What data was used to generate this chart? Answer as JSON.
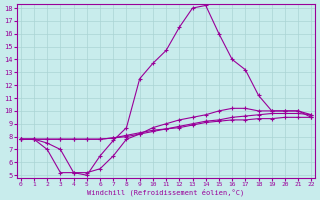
{
  "xlabel": "Windchill (Refroidissement éolien,°C)",
  "xlim": [
    -0.3,
    22.3
  ],
  "ylim": [
    4.8,
    18.3
  ],
  "yticks": [
    5,
    6,
    7,
    8,
    9,
    10,
    11,
    12,
    13,
    14,
    15,
    16,
    17,
    18
  ],
  "xticks": [
    0,
    1,
    2,
    3,
    4,
    5,
    6,
    7,
    8,
    9,
    10,
    11,
    12,
    13,
    14,
    15,
    16,
    17,
    18,
    19,
    20,
    21,
    22
  ],
  "background_color": "#c8ecec",
  "grid_color": "#aad4d4",
  "line_color": "#990099",
  "line1_x": [
    0,
    1,
    2,
    3,
    4,
    5,
    6,
    7,
    8,
    9,
    10,
    11,
    12,
    13,
    14,
    15,
    16,
    17,
    18,
    19,
    20,
    21,
    22
  ],
  "line1_y": [
    7.8,
    7.8,
    7.0,
    5.2,
    5.2,
    5.0,
    6.5,
    7.7,
    8.7,
    12.5,
    13.7,
    14.7,
    16.5,
    18.0,
    18.2,
    16.0,
    14.0,
    13.2,
    11.2,
    10.0,
    10.0,
    10.0,
    9.7
  ],
  "line2_x": [
    0,
    1,
    2,
    3,
    4,
    5,
    6,
    7,
    8,
    9,
    10,
    11,
    12,
    13,
    14,
    15,
    16,
    17,
    18,
    19,
    20,
    21,
    22
  ],
  "line2_y": [
    7.8,
    7.8,
    7.5,
    7.0,
    5.2,
    5.2,
    5.5,
    6.5,
    7.8,
    8.2,
    8.7,
    9.0,
    9.3,
    9.5,
    9.7,
    10.0,
    10.2,
    10.2,
    10.0,
    10.0,
    10.0,
    10.0,
    9.5
  ],
  "line3_x": [
    0,
    1,
    2,
    3,
    4,
    5,
    6,
    7,
    8,
    9,
    10,
    11,
    12,
    13,
    14,
    15,
    16,
    17,
    18,
    19,
    20,
    21,
    22
  ],
  "line3_y": [
    7.8,
    7.8,
    7.8,
    7.8,
    7.8,
    7.8,
    7.8,
    7.9,
    8.0,
    8.2,
    8.4,
    8.6,
    8.7,
    8.9,
    9.1,
    9.2,
    9.3,
    9.3,
    9.4,
    9.4,
    9.5,
    9.5,
    9.5
  ],
  "line4_x": [
    0,
    1,
    2,
    3,
    4,
    5,
    6,
    7,
    8,
    9,
    10,
    11,
    12,
    13,
    14,
    15,
    16,
    17,
    18,
    19,
    20,
    21,
    22
  ],
  "line4_y": [
    7.8,
    7.8,
    7.8,
    7.8,
    7.8,
    7.8,
    7.8,
    7.9,
    8.1,
    8.3,
    8.5,
    8.6,
    8.8,
    9.0,
    9.2,
    9.3,
    9.5,
    9.6,
    9.7,
    9.8,
    9.8,
    9.8,
    9.7
  ]
}
